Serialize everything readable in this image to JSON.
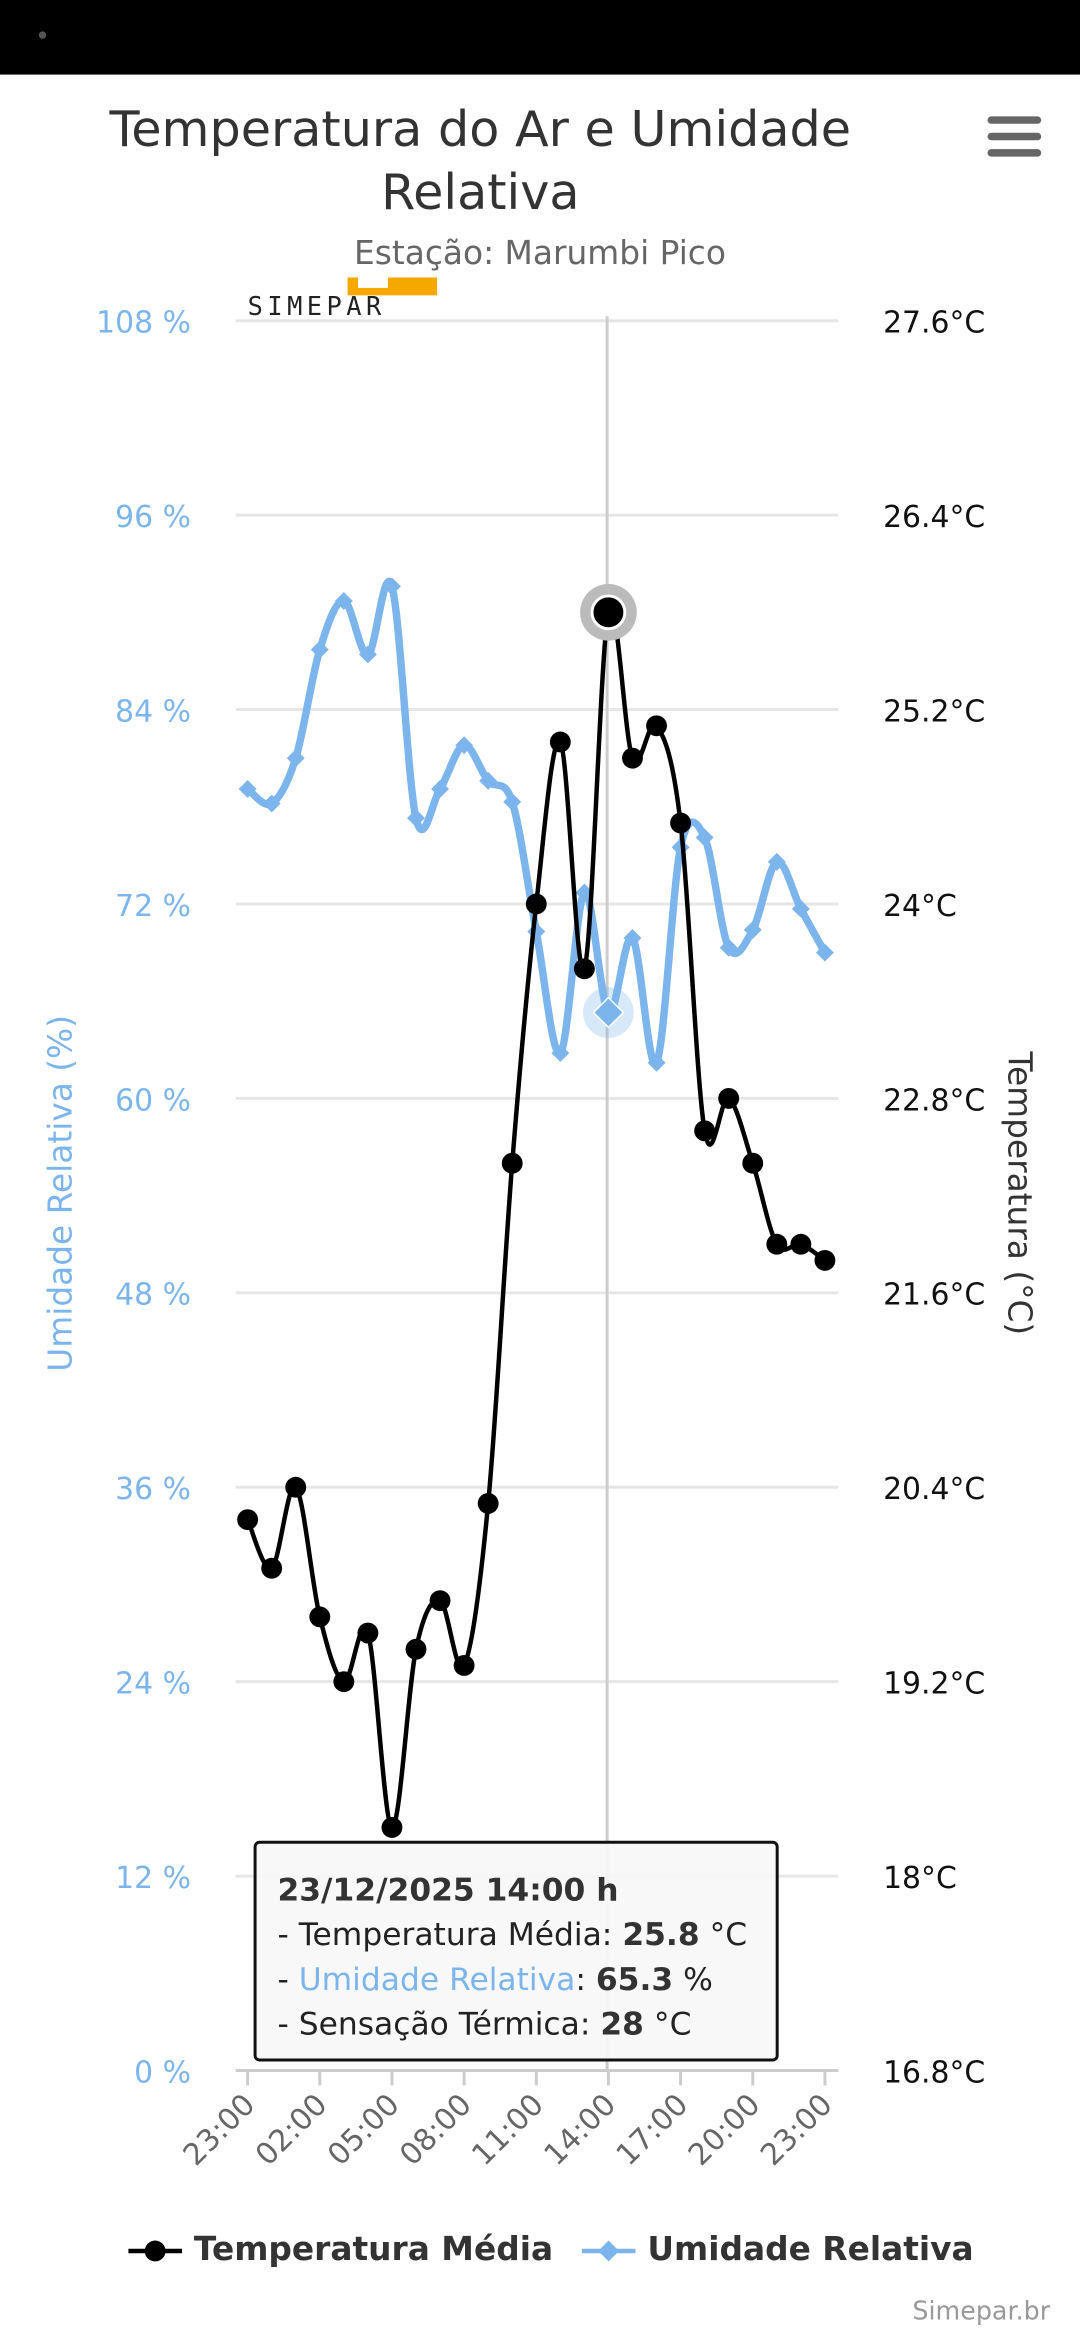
{
  "header": {
    "title": "Temperatura do Ar e Umidade Relativa",
    "subtitle": "Estação: Marumbi Pico",
    "menu_icon": "hamburger-icon",
    "logo_text": "SIMEPAR"
  },
  "chart_data": {
    "type": "line",
    "title": "Temperatura do Ar e Umidade Relativa",
    "subtitle": "Estação: Marumbi Pico",
    "x": [
      "23:00",
      "00:00",
      "01:00",
      "02:00",
      "03:00",
      "04:00",
      "05:00",
      "06:00",
      "07:00",
      "08:00",
      "09:00",
      "10:00",
      "11:00",
      "12:00",
      "13:00",
      "14:00",
      "15:00",
      "16:00",
      "17:00",
      "18:00",
      "19:00",
      "20:00",
      "21:00",
      "22:00",
      "23:00"
    ],
    "x_tick_labels": [
      "23:00",
      "02:00",
      "05:00",
      "08:00",
      "11:00",
      "14:00",
      "17:00",
      "20:00",
      "23:00"
    ],
    "y_left": {
      "label": "Umidade Relativa (%)",
      "range": [
        0,
        108
      ],
      "ticks": [
        "0 %",
        "12 %",
        "24 %",
        "36 %",
        "48 %",
        "60 %",
        "72 %",
        "84 %",
        "96 %",
        "108 %"
      ],
      "color": "#7cb5ec"
    },
    "y_right": {
      "label": "Temperatura (°C)",
      "range": [
        16.8,
        27.6
      ],
      "ticks": [
        "16.8°C",
        "18°C",
        "19.2°C",
        "20.4°C",
        "21.6°C",
        "22.8°C",
        "24°C",
        "25.2°C",
        "26.4°C",
        "27.6°C"
      ],
      "color": "#000000"
    },
    "grid": true,
    "legend_position": "bottom",
    "series": [
      {
        "name": "Temperatura Média",
        "axis": "right",
        "color": "#000000",
        "marker": "circle",
        "values": [
          20.2,
          19.9,
          20.4,
          19.6,
          19.2,
          19.5,
          18.3,
          19.4,
          19.7,
          19.3,
          20.3,
          22.4,
          24.0,
          25.0,
          23.6,
          25.8,
          24.9,
          25.1,
          24.5,
          22.6,
          22.8,
          22.4,
          21.9,
          21.9,
          21.8
        ]
      },
      {
        "name": "Umidade Relativa",
        "axis": "left",
        "color": "#7cb5ec",
        "marker": "diamond",
        "values": [
          79.1,
          78.2,
          81.0,
          87.7,
          90.7,
          87.4,
          91.6,
          77.3,
          79.1,
          81.8,
          79.6,
          78.3,
          70.3,
          62.8,
          72.7,
          65.3,
          69.9,
          62.2,
          75.5,
          76.1,
          69.3,
          70.4,
          74.6,
          71.7,
          69.0
        ]
      }
    ],
    "highlight_index": 15
  },
  "tooltip": {
    "date": "23/12/2025 14:00 h",
    "temp_label": "- Temperatura Média: ",
    "temp_value": "25.8",
    "temp_unit": " °C",
    "hum_prefix": "- ",
    "hum_label": "Umidade Relativa",
    "hum_sep": ": ",
    "hum_value": "65.3",
    "hum_unit": " %",
    "feel_label": "- Sensação Térmica: ",
    "feel_value": "28",
    "feel_unit": " °C"
  },
  "footer": {
    "credit": "Simepar.br"
  }
}
